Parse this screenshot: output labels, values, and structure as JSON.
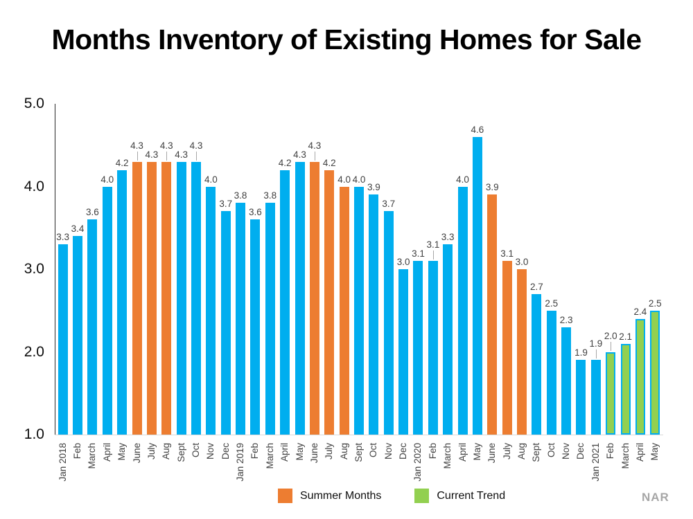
{
  "title": "Months Inventory of Existing Homes for Sale",
  "source": "NAR",
  "colors": {
    "regular": "#00AEEF",
    "summer": "#ED7D31",
    "trend": "#92D050",
    "trend_border": "#00AEEF"
  },
  "legend": [
    {
      "label": "Summer Months",
      "group": "summer"
    },
    {
      "label": "Current Trend",
      "group": "trend"
    }
  ],
  "chart_data": {
    "type": "bar",
    "title": "Months Inventory of Existing Homes for Sale",
    "xlabel": "",
    "ylabel": "",
    "ylim": [
      1.0,
      5.0
    ],
    "yticks": [
      5.0,
      4.0,
      3.0,
      2.0,
      1.0
    ],
    "grid": false,
    "legend_position": "bottom",
    "bars": [
      {
        "month": "Jan 2018",
        "value": 3.3,
        "group": "regular"
      },
      {
        "month": "Feb",
        "value": 3.4,
        "group": "regular"
      },
      {
        "month": "March",
        "value": 3.6,
        "group": "regular"
      },
      {
        "month": "April",
        "value": 4.0,
        "group": "regular"
      },
      {
        "month": "May",
        "value": 4.2,
        "group": "regular"
      },
      {
        "month": "June",
        "value": 4.3,
        "group": "summer"
      },
      {
        "month": "July",
        "value": 4.3,
        "group": "summer"
      },
      {
        "month": "Aug",
        "value": 4.3,
        "group": "summer"
      },
      {
        "month": "Sept",
        "value": 4.3,
        "group": "regular"
      },
      {
        "month": "Oct",
        "value": 4.3,
        "group": "regular"
      },
      {
        "month": "Nov",
        "value": 4.0,
        "group": "regular"
      },
      {
        "month": "Dec",
        "value": 3.7,
        "group": "regular"
      },
      {
        "month": "Jan 2019",
        "value": 3.8,
        "group": "regular"
      },
      {
        "month": "Feb",
        "value": 3.6,
        "group": "regular"
      },
      {
        "month": "March",
        "value": 3.8,
        "group": "regular"
      },
      {
        "month": "April",
        "value": 4.2,
        "group": "regular"
      },
      {
        "month": "May",
        "value": 4.3,
        "group": "regular"
      },
      {
        "month": "June",
        "value": 4.3,
        "group": "summer"
      },
      {
        "month": "July",
        "value": 4.2,
        "group": "summer"
      },
      {
        "month": "Aug",
        "value": 4.0,
        "group": "summer"
      },
      {
        "month": "Sept",
        "value": 4.0,
        "group": "regular"
      },
      {
        "month": "Oct",
        "value": 3.9,
        "group": "regular"
      },
      {
        "month": "Nov",
        "value": 3.7,
        "group": "regular"
      },
      {
        "month": "Dec",
        "value": 3.0,
        "group": "regular"
      },
      {
        "month": "Jan 2020",
        "value": 3.1,
        "group": "regular"
      },
      {
        "month": "Feb",
        "value": 3.1,
        "group": "regular"
      },
      {
        "month": "March",
        "value": 3.3,
        "group": "regular"
      },
      {
        "month": "April",
        "value": 4.0,
        "group": "regular"
      },
      {
        "month": "May",
        "value": 4.6,
        "group": "regular"
      },
      {
        "month": "June",
        "value": 3.9,
        "group": "summer"
      },
      {
        "month": "July",
        "value": 3.1,
        "group": "summer"
      },
      {
        "month": "Aug",
        "value": 3.0,
        "group": "summer"
      },
      {
        "month": "Sept",
        "value": 2.7,
        "group": "regular"
      },
      {
        "month": "Oct",
        "value": 2.5,
        "group": "regular"
      },
      {
        "month": "Nov",
        "value": 2.3,
        "group": "regular"
      },
      {
        "month": "Dec",
        "value": 1.9,
        "group": "regular"
      },
      {
        "month": "Jan 2021",
        "value": 1.9,
        "group": "regular"
      },
      {
        "month": "Feb",
        "value": 2.0,
        "group": "trend"
      },
      {
        "month": "March",
        "value": 2.1,
        "group": "trend"
      },
      {
        "month": "April",
        "value": 2.4,
        "group": "trend"
      },
      {
        "month": "May",
        "value": 2.5,
        "group": "trend"
      }
    ],
    "raised_label_indices": [
      5,
      7,
      9,
      17,
      25,
      36,
      37
    ]
  }
}
